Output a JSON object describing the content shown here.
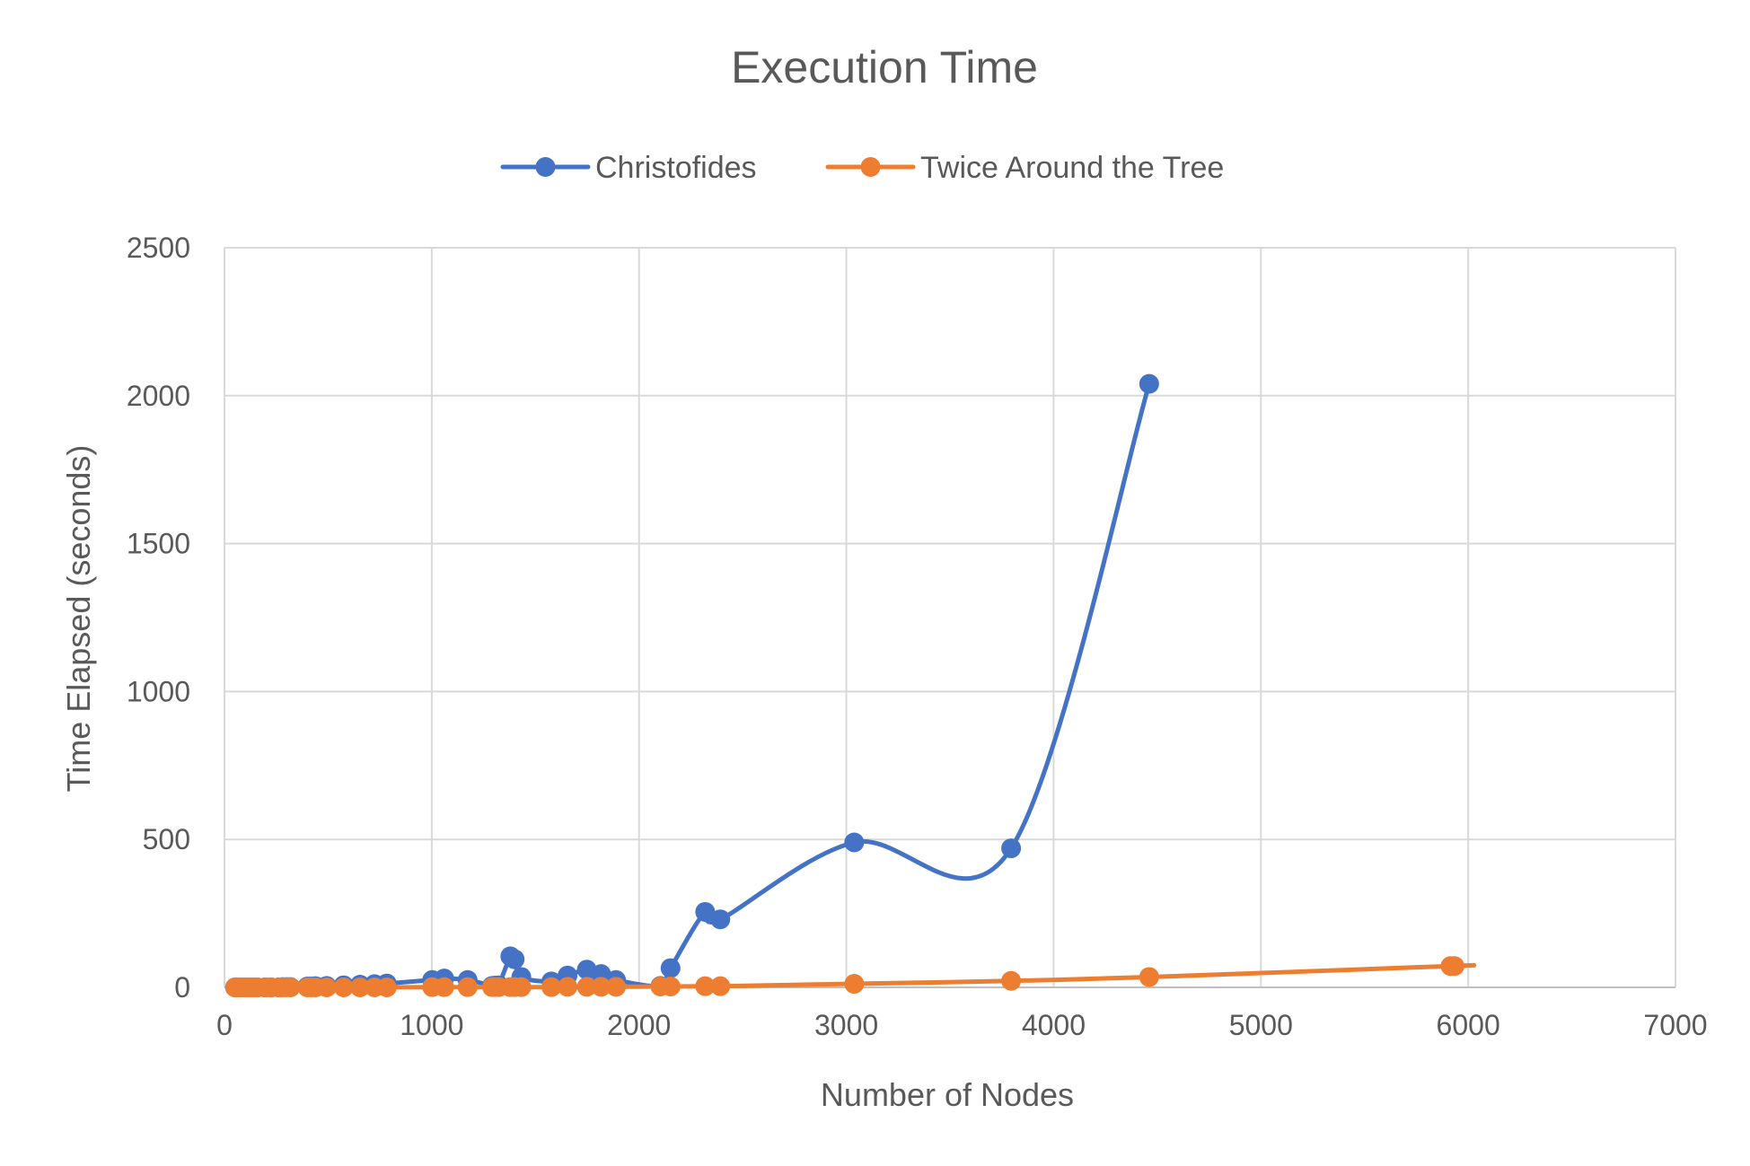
{
  "chart_data": {
    "type": "scatter",
    "title": "Execution Time",
    "xlabel": "Number of Nodes",
    "ylabel": "Time Elapsed (seconds)",
    "xlim": [
      0,
      7000
    ],
    "ylim": [
      0,
      2500
    ],
    "xticks": [
      0,
      1000,
      2000,
      3000,
      4000,
      5000,
      6000,
      7000
    ],
    "yticks": [
      0,
      500,
      1000,
      1500,
      2000,
      2500
    ],
    "grid": true,
    "legend_position": "top",
    "line_style": "smoothed lines with markers",
    "series": [
      {
        "name": "Christofides",
        "color": "#4472C4",
        "points": [
          [
            51,
            0
          ],
          [
            70,
            0
          ],
          [
            76,
            0
          ],
          [
            99,
            0
          ],
          [
            100,
            0
          ],
          [
            105,
            0
          ],
          [
            107,
            0
          ],
          [
            124,
            0
          ],
          [
            130,
            0
          ],
          [
            136,
            0
          ],
          [
            144,
            0
          ],
          [
            150,
            0
          ],
          [
            152,
            0
          ],
          [
            159,
            0
          ],
          [
            195,
            0
          ],
          [
            200,
            0
          ],
          [
            225,
            0
          ],
          [
            226,
            0
          ],
          [
            262,
            0
          ],
          [
            264,
            0
          ],
          [
            280,
            1
          ],
          [
            299,
            1
          ],
          [
            318,
            1
          ],
          [
            400,
            3
          ],
          [
            417,
            3
          ],
          [
            439,
            4
          ],
          [
            493,
            5
          ],
          [
            575,
            7
          ],
          [
            654,
            9
          ],
          [
            724,
            11
          ],
          [
            783,
            13
          ],
          [
            1002,
            25
          ],
          [
            1060,
            30
          ],
          [
            1173,
            25
          ],
          [
            1291,
            5
          ],
          [
            1304,
            6
          ],
          [
            1323,
            7
          ],
          [
            1379,
            105
          ],
          [
            1400,
            95
          ],
          [
            1432,
            35
          ],
          [
            1577,
            20
          ],
          [
            1655,
            40
          ],
          [
            1748,
            60
          ],
          [
            1817,
            45
          ],
          [
            1889,
            25
          ],
          [
            2103,
            5
          ],
          [
            2152,
            65
          ],
          [
            2319,
            255
          ],
          [
            2392,
            230
          ],
          [
            3038,
            490
          ],
          [
            3795,
            470
          ],
          [
            4461,
            2040
          ]
        ]
      },
      {
        "name": "Twice Around the Tree",
        "color": "#ED7D31",
        "points": [
          [
            51,
            0
          ],
          [
            70,
            0
          ],
          [
            76,
            0
          ],
          [
            99,
            0
          ],
          [
            100,
            0
          ],
          [
            105,
            0
          ],
          [
            107,
            0
          ],
          [
            124,
            0
          ],
          [
            130,
            0
          ],
          [
            136,
            0
          ],
          [
            144,
            0
          ],
          [
            150,
            0
          ],
          [
            152,
            0
          ],
          [
            159,
            0
          ],
          [
            195,
            0
          ],
          [
            200,
            0
          ],
          [
            225,
            0
          ],
          [
            226,
            0
          ],
          [
            262,
            0
          ],
          [
            264,
            0
          ],
          [
            280,
            0
          ],
          [
            299,
            0
          ],
          [
            318,
            0
          ],
          [
            400,
            0
          ],
          [
            417,
            0
          ],
          [
            439,
            0
          ],
          [
            493,
            0
          ],
          [
            575,
            0
          ],
          [
            654,
            0
          ],
          [
            724,
            0
          ],
          [
            783,
            0
          ],
          [
            1002,
            1
          ],
          [
            1060,
            1
          ],
          [
            1173,
            1
          ],
          [
            1291,
            1
          ],
          [
            1304,
            1
          ],
          [
            1323,
            1
          ],
          [
            1379,
            1
          ],
          [
            1400,
            1
          ],
          [
            1432,
            1
          ],
          [
            1577,
            1
          ],
          [
            1655,
            2
          ],
          [
            1748,
            2
          ],
          [
            1817,
            2
          ],
          [
            1889,
            2
          ],
          [
            2103,
            3
          ],
          [
            2152,
            3
          ],
          [
            2319,
            4
          ],
          [
            2392,
            4
          ],
          [
            3038,
            12
          ],
          [
            3795,
            22
          ],
          [
            4461,
            35
          ],
          [
            5915,
            72
          ],
          [
            5934,
            72
          ]
        ]
      }
    ]
  }
}
